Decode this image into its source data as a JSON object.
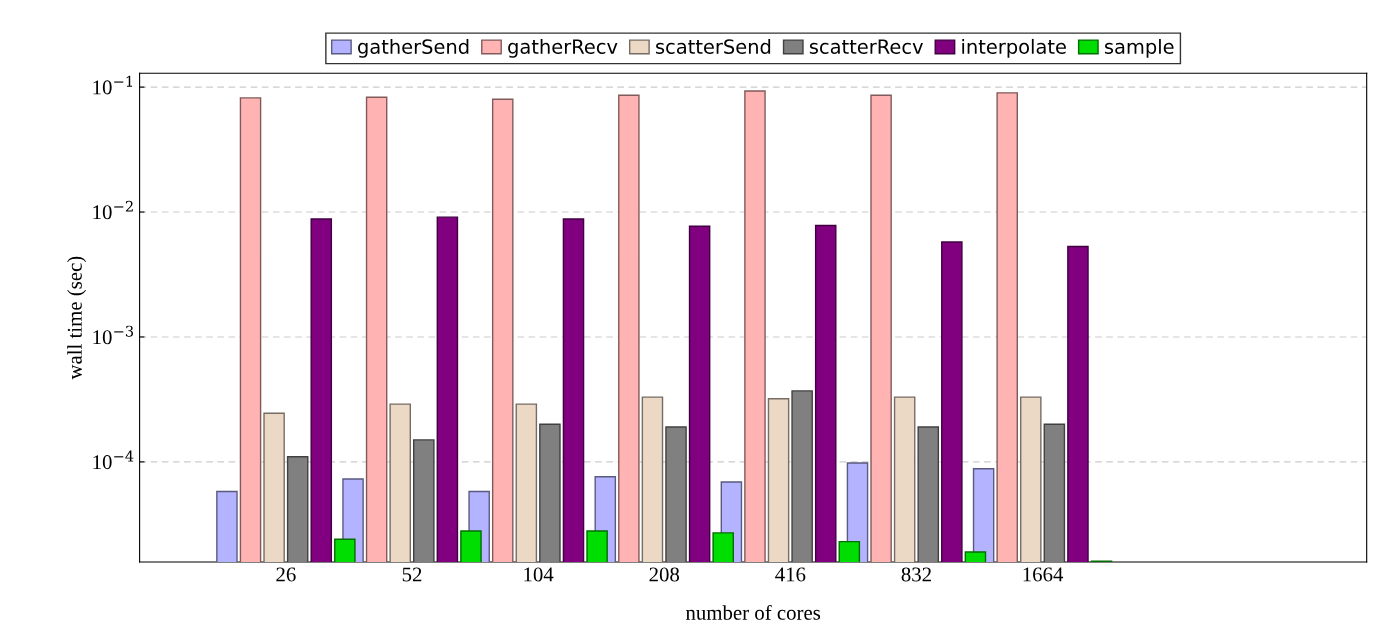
{
  "chart_data": {
    "type": "bar",
    "xlabel": "number of cores",
    "ylabel": "wall time (sec)",
    "categories": [
      "26",
      "52",
      "104",
      "208",
      "416",
      "832",
      "1664"
    ],
    "series": [
      {
        "name": "gatherSend",
        "color": "#b3b3ff",
        "values": [
          5.8e-05,
          7.3e-05,
          5.8e-05,
          7.6e-05,
          6.9e-05,
          9.8e-05,
          8.8e-05
        ]
      },
      {
        "name": "gatherRecv",
        "color": "#ffb3b3",
        "values": [
          0.082,
          0.083,
          0.08,
          0.086,
          0.093,
          0.086,
          0.09
        ]
      },
      {
        "name": "scatterSend",
        "color": "#ebd9c6",
        "values": [
          0.000245,
          0.00029,
          0.00029,
          0.00033,
          0.00032,
          0.00033,
          0.00033
        ]
      },
      {
        "name": "scatterRecv",
        "color": "#808080",
        "values": [
          0.00011,
          0.00015,
          0.0002,
          0.00019,
          0.00037,
          0.00019,
          0.0002
        ]
      },
      {
        "name": "interpolate",
        "color": "#800080",
        "values": [
          0.0088,
          0.0091,
          0.0088,
          0.0077,
          0.0078,
          0.00575,
          0.0053
        ]
      },
      {
        "name": "sample",
        "color": "#00dd00",
        "values": [
          2.4e-05,
          2.8e-05,
          2.8e-05,
          2.7e-05,
          2.3e-05,
          1.9e-05,
          1.6e-05
        ]
      }
    ],
    "log": true,
    "ylim": [
      1.58e-05,
      0.129
    ],
    "yticks": [
      {
        "value": 0.0001,
        "label": "10$^{−4}$"
      },
      {
        "value": 0.001,
        "label": "10$^{−3}$"
      },
      {
        "value": 0.01,
        "label": "10$^{−2}$"
      },
      {
        "value": 0.1,
        "label": "10$^{−1}$"
      }
    ],
    "grid": "y",
    "legend": "top"
  }
}
